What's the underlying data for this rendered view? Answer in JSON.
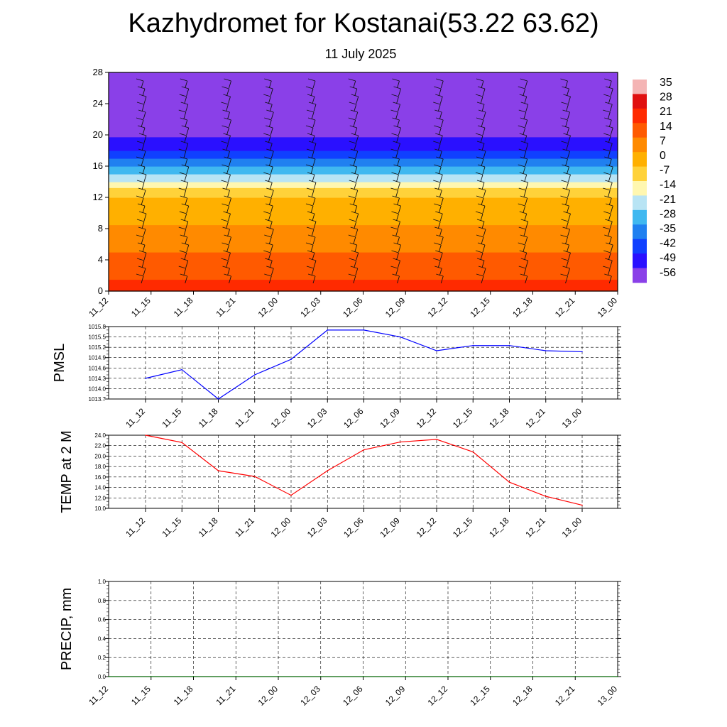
{
  "title": "Kazhydromet for Kostanai(53.22 63.62)",
  "subtitle": "11 July 2025",
  "colors": {
    "pmsl_line": "#0000ff",
    "temp_line": "#ff0000",
    "precip_line": "#006400",
    "grid": "#000000"
  },
  "chart_data": [
    {
      "type": "heatmap",
      "name": "vertical cross-section",
      "x_ticks": [
        "11_12",
        "11_15",
        "11_18",
        "11_21",
        "12_00",
        "12_03",
        "12_06",
        "12_09",
        "12_12",
        "12_15",
        "12_18",
        "12_21",
        "13_00"
      ],
      "y_ticks": [
        0,
        4,
        8,
        12,
        16,
        20,
        24,
        28
      ],
      "ylim": [
        0,
        28
      ],
      "colorbar_labels": [
        "35",
        "28",
        "21",
        "14",
        "7",
        "0",
        "-7",
        "-14",
        "-21",
        "-28",
        "-35",
        "-42",
        "-49",
        "-56"
      ],
      "colorbar_colors": [
        "#f4b4b4",
        "#e01010",
        "#ff2a00",
        "#ff5a00",
        "#ff8a00",
        "#ffb000",
        "#ffd23a",
        "#fff7b0",
        "#b8e4f4",
        "#40b8f0",
        "#2080f0",
        "#1040ff",
        "#2a10ff",
        "#8a40e8"
      ],
      "column_profiles": {
        "heights": [
          0,
          2,
          4,
          6,
          8,
          10,
          12,
          13,
          14,
          16,
          18,
          20,
          24,
          28
        ],
        "temperatures": [
          24,
          20,
          16,
          12,
          8,
          4,
          0,
          -4,
          -14,
          -28,
          -42,
          -50,
          -54,
          -56
        ]
      }
    },
    {
      "type": "line",
      "ylabel": "PMSL",
      "x": [
        "11_12",
        "11_15",
        "11_18",
        "11_21",
        "12_00",
        "12_03",
        "12_06",
        "12_09",
        "12_12",
        "12_15",
        "12_18",
        "12_21",
        "13_00"
      ],
      "y_ticks": [
        "1013.7",
        "1014.0",
        "1014.3",
        "1014.6",
        "1014.9",
        "1015.2",
        "1015.5",
        "1015.8"
      ],
      "ylim": [
        1013.7,
        1015.8
      ],
      "values": [
        1014.3,
        1014.55,
        1013.7,
        1014.4,
        1014.85,
        1015.7,
        1015.7,
        1015.5,
        1015.1,
        1015.25,
        1015.25,
        1015.1,
        1015.07
      ]
    },
    {
      "type": "line",
      "ylabel": "TEMP at 2 M",
      "x": [
        "11_12",
        "11_15",
        "11_18",
        "11_21",
        "12_00",
        "12_03",
        "12_06",
        "12_09",
        "12_12",
        "12_15",
        "12_18",
        "12_21",
        "13_00"
      ],
      "y_ticks": [
        "10.0",
        "12.0",
        "14.0",
        "16.0",
        "18.0",
        "20.0",
        "22.0",
        "24.0"
      ],
      "ylim": [
        10,
        24
      ],
      "values": [
        24.0,
        22.6,
        17.2,
        16.1,
        12.5,
        17.2,
        21.2,
        22.7,
        23.2,
        20.8,
        15.0,
        12.3,
        10.6
      ]
    },
    {
      "type": "line",
      "ylabel": "PRECIP, mm",
      "x_ticks": [
        "11_12",
        "11_15",
        "11_18",
        "11_21",
        "12_00",
        "12_03",
        "12_06",
        "12_09",
        "12_12",
        "12_15",
        "12_18",
        "12_21",
        "13_00"
      ],
      "y_ticks": [
        "0.0",
        "0.2",
        "0.4",
        "0.6",
        "0.8",
        "1.0"
      ],
      "ylim": [
        0,
        1
      ],
      "values": [
        0,
        0,
        0,
        0,
        0,
        0,
        0,
        0,
        0,
        0,
        0,
        0,
        0
      ]
    }
  ]
}
